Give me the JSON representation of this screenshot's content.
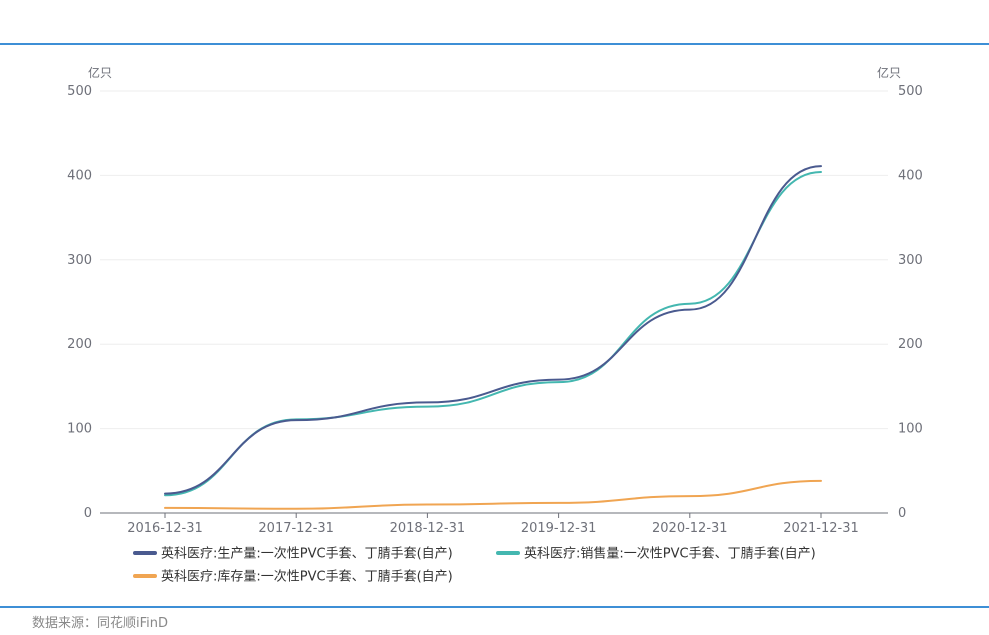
{
  "source_label": "数据来源：同花顺iFinD",
  "colors": {
    "production": "#4a5a8f",
    "sales": "#44b7b0",
    "inventory": "#f0a552",
    "axis": "#6e7079",
    "grid": "#eeeeee",
    "rule": "#3d8fd6"
  },
  "chart_data": {
    "type": "line",
    "x": [
      "2016-12-31",
      "2017-12-31",
      "2018-12-31",
      "2019-12-31",
      "2020-12-31",
      "2021-12-31"
    ],
    "series": [
      {
        "name": "英科医疗:生产量:一次性PVC手套、丁腈手套(自产)",
        "values": [
          23,
          110,
          131,
          158,
          241,
          411
        ]
      },
      {
        "name": "英科医疗:销售量:一次性PVC手套、丁腈手套(自产)",
        "values": [
          21,
          111,
          126,
          155,
          248,
          404
        ]
      },
      {
        "name": "英科医疗:库存量:一次性PVC手套、丁腈手套(自产)",
        "values": [
          6,
          5,
          10,
          12,
          20,
          38
        ]
      }
    ],
    "yaxis_left": {
      "unit": "亿只",
      "ticks": [
        "0",
        "100",
        "200",
        "300",
        "400",
        "500"
      ]
    },
    "yaxis_right": {
      "unit": "亿只",
      "ticks": [
        "0",
        "100",
        "200",
        "300",
        "400",
        "500"
      ]
    },
    "ylim": [
      0,
      500
    ],
    "grid": true,
    "legend_position": "bottom",
    "title": "",
    "xlabel": "",
    "ylabel": "亿只"
  }
}
